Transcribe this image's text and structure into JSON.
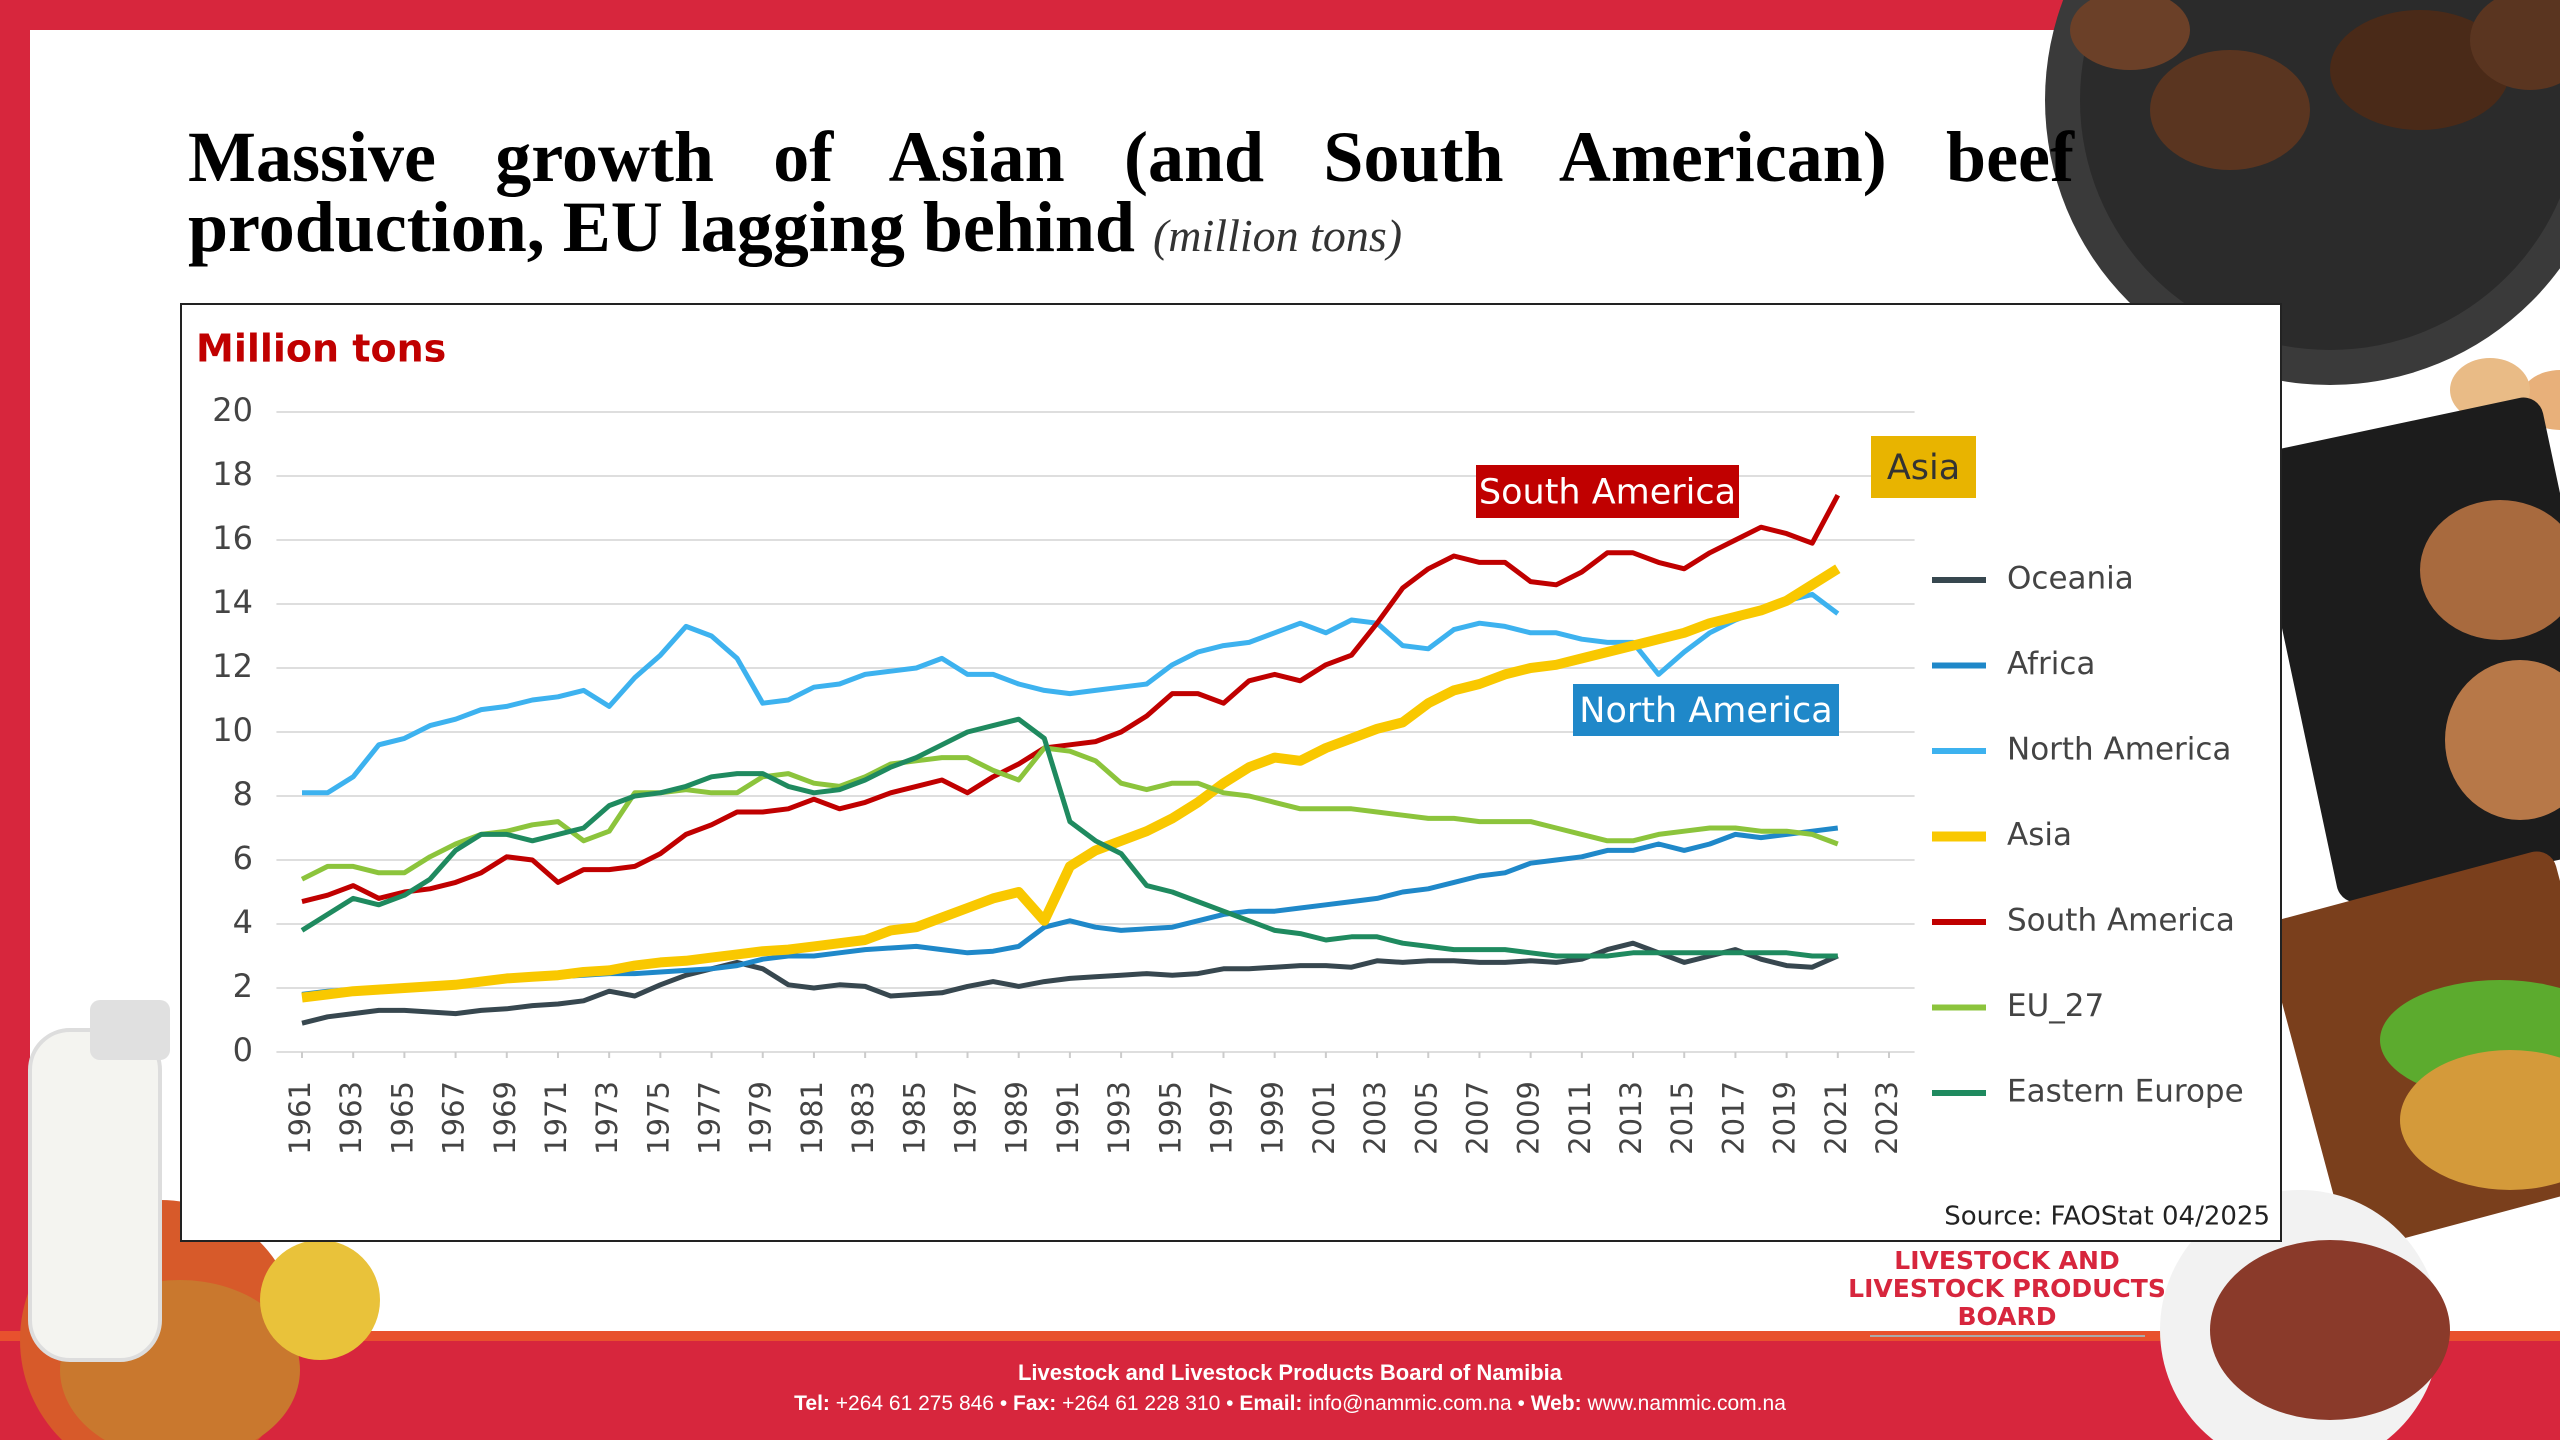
{
  "header": {
    "title": "Massive growth of Asian (and South American) beef production, EU lagging behind",
    "unit": "(million tons)"
  },
  "chart_data": {
    "type": "line",
    "ylabel": "Million tons",
    "x": [
      1961,
      1962,
      1963,
      1964,
      1965,
      1966,
      1967,
      1968,
      1969,
      1970,
      1971,
      1972,
      1973,
      1974,
      1975,
      1976,
      1977,
      1978,
      1979,
      1980,
      1981,
      1982,
      1983,
      1984,
      1985,
      1986,
      1987,
      1988,
      1989,
      1990,
      1991,
      1992,
      1993,
      1994,
      1995,
      1996,
      1997,
      1998,
      1999,
      2000,
      2001,
      2002,
      2003,
      2004,
      2005,
      2006,
      2007,
      2008,
      2009,
      2010,
      2011,
      2012,
      2013,
      2014,
      2015,
      2016,
      2017,
      2018,
      2019,
      2020,
      2021
    ],
    "xlim": [
      1960,
      2024
    ],
    "xticks": [
      1961,
      1963,
      1965,
      1967,
      1969,
      1971,
      1973,
      1975,
      1977,
      1979,
      1981,
      1983,
      1985,
      1987,
      1989,
      1991,
      1993,
      1995,
      1997,
      1999,
      2001,
      2003,
      2005,
      2007,
      2009,
      2011,
      2013,
      2015,
      2017,
      2019,
      2021,
      2023
    ],
    "ylim": [
      0,
      20
    ],
    "yticks": [
      0,
      2,
      4,
      6,
      8,
      10,
      12,
      14,
      16,
      18,
      20
    ],
    "grid": true,
    "legend": "right",
    "series": [
      {
        "name": "Oceania",
        "color": "#37474f",
        "values": [
          0.9,
          1.1,
          1.2,
          1.3,
          1.3,
          1.25,
          1.2,
          1.3,
          1.35,
          1.45,
          1.5,
          1.6,
          1.9,
          1.75,
          2.1,
          2.4,
          2.6,
          2.8,
          2.6,
          2.1,
          2.0,
          2.1,
          2.05,
          1.75,
          1.8,
          1.85,
          2.05,
          2.2,
          2.05,
          2.2,
          2.3,
          2.35,
          2.4,
          2.45,
          2.4,
          2.45,
          2.6,
          2.6,
          2.65,
          2.7,
          2.7,
          2.65,
          2.85,
          2.8,
          2.85,
          2.85,
          2.8,
          2.8,
          2.85,
          2.8,
          2.9,
          3.2,
          3.4,
          3.1,
          2.8,
          3.0,
          3.2,
          2.9,
          2.7,
          2.65,
          3.0
        ]
      },
      {
        "name": "Africa",
        "color": "#1f88c9",
        "values": [
          1.8,
          1.9,
          1.95,
          2.0,
          2.05,
          2.1,
          2.15,
          2.2,
          2.25,
          2.3,
          2.35,
          2.4,
          2.45,
          2.45,
          2.5,
          2.55,
          2.6,
          2.7,
          2.9,
          3.0,
          3.0,
          3.1,
          3.2,
          3.25,
          3.3,
          3.2,
          3.1,
          3.15,
          3.3,
          3.9,
          4.1,
          3.9,
          3.8,
          3.85,
          3.9,
          4.1,
          4.3,
          4.4,
          4.4,
          4.5,
          4.6,
          4.7,
          4.8,
          5.0,
          5.1,
          5.3,
          5.5,
          5.6,
          5.9,
          6.0,
          6.1,
          6.3,
          6.3,
          6.5,
          6.3,
          6.5,
          6.8,
          6.7,
          6.8,
          6.9,
          7.0
        ]
      },
      {
        "name": "North America",
        "color": "#3db2ef",
        "values": [
          8.1,
          8.1,
          8.6,
          9.6,
          9.8,
          10.2,
          10.4,
          10.7,
          10.8,
          11.0,
          11.1,
          11.3,
          10.8,
          11.7,
          12.4,
          13.3,
          13.0,
          12.3,
          10.9,
          11.0,
          11.4,
          11.5,
          11.8,
          11.9,
          12.0,
          12.3,
          11.8,
          11.8,
          11.5,
          11.3,
          11.2,
          11.3,
          11.4,
          11.5,
          12.1,
          12.5,
          12.7,
          12.8,
          13.1,
          13.4,
          13.1,
          13.5,
          13.4,
          12.7,
          12.6,
          13.2,
          13.4,
          13.3,
          13.1,
          13.1,
          12.9,
          12.8,
          12.8,
          11.8,
          12.5,
          13.1,
          13.5,
          13.8,
          14.1,
          14.3,
          13.7
        ]
      },
      {
        "name": "Asia",
        "color": "#f9c800",
        "values": [
          1.7,
          1.8,
          1.9,
          1.95,
          2.0,
          2.05,
          2.1,
          2.2,
          2.3,
          2.35,
          2.4,
          2.5,
          2.55,
          2.7,
          2.8,
          2.85,
          2.95,
          3.05,
          3.15,
          3.2,
          3.3,
          3.4,
          3.5,
          3.8,
          3.9,
          4.2,
          4.5,
          4.8,
          5.0,
          4.1,
          5.8,
          6.3,
          6.6,
          6.9,
          7.3,
          7.8,
          8.4,
          8.9,
          9.2,
          9.1,
          9.5,
          9.8,
          10.1,
          10.3,
          10.9,
          11.3,
          11.5,
          11.8,
          12.0,
          12.1,
          12.3,
          12.5,
          12.7,
          12.9,
          13.1,
          13.4,
          13.6,
          13.8,
          14.1,
          14.6,
          15.1
        ]
      },
      {
        "name": "South America",
        "color": "#c00000",
        "values": [
          4.7,
          4.9,
          5.2,
          4.8,
          5.0,
          5.1,
          5.3,
          5.6,
          6.1,
          6.0,
          5.3,
          5.7,
          5.7,
          5.8,
          6.2,
          6.8,
          7.1,
          7.5,
          7.5,
          7.6,
          7.9,
          7.6,
          7.8,
          8.1,
          8.3,
          8.5,
          8.1,
          8.6,
          9.0,
          9.5,
          9.6,
          9.7,
          10.0,
          10.5,
          11.2,
          11.2,
          10.9,
          11.6,
          11.8,
          11.6,
          12.1,
          12.4,
          13.4,
          14.5,
          15.1,
          15.5,
          15.3,
          15.3,
          14.7,
          14.6,
          15.0,
          15.6,
          15.6,
          15.3,
          15.1,
          15.6,
          16.0,
          16.4,
          16.2,
          15.9,
          17.4
        ]
      },
      {
        "name": "EU_27",
        "color": "#8cc43c",
        "values": [
          5.4,
          5.8,
          5.8,
          5.6,
          5.6,
          6.1,
          6.5,
          6.8,
          6.9,
          7.1,
          7.2,
          6.6,
          6.9,
          8.1,
          8.1,
          8.2,
          8.1,
          8.1,
          8.6,
          8.7,
          8.4,
          8.3,
          8.6,
          9.0,
          9.1,
          9.2,
          9.2,
          8.8,
          8.5,
          9.5,
          9.4,
          9.1,
          8.4,
          8.2,
          8.4,
          8.4,
          8.1,
          8.0,
          7.8,
          7.6,
          7.6,
          7.6,
          7.5,
          7.4,
          7.3,
          7.3,
          7.2,
          7.2,
          7.2,
          7.0,
          6.8,
          6.6,
          6.6,
          6.8,
          6.9,
          7.0,
          7.0,
          6.9,
          6.9,
          6.8,
          6.5
        ]
      },
      {
        "name": "Eastern Europe",
        "color": "#1f8a5f",
        "values": [
          3.8,
          4.3,
          4.8,
          4.6,
          4.9,
          5.4,
          6.3,
          6.8,
          6.8,
          6.6,
          6.8,
          7.0,
          7.7,
          8.0,
          8.1,
          8.3,
          8.6,
          8.7,
          8.7,
          8.3,
          8.1,
          8.2,
          8.5,
          8.9,
          9.2,
          9.6,
          10.0,
          10.2,
          10.4,
          9.8,
          7.2,
          6.6,
          6.2,
          5.2,
          5.0,
          4.7,
          4.4,
          4.1,
          3.8,
          3.7,
          3.5,
          3.6,
          3.6,
          3.4,
          3.3,
          3.2,
          3.2,
          3.2,
          3.1,
          3.0,
          3.0,
          3.0,
          3.1,
          3.1,
          3.1,
          3.1,
          3.1,
          3.1,
          3.1,
          3.0,
          3.0
        ]
      }
    ],
    "annotations": [
      {
        "text": "South America",
        "color": "#c00000"
      },
      {
        "text": "North America",
        "color": "#1f88c9"
      },
      {
        "text": "Asia",
        "color": "#e8b400"
      }
    ],
    "source": "Source: FAOStat 04/2025"
  },
  "logo": {
    "lines": [
      "LIVESTOCK AND",
      "LIVESTOCK PRODUCTS",
      "BOARD"
    ]
  },
  "footer": {
    "name": "Livestock and Livestock Products Board of Namibia",
    "separator": "•",
    "contacts": [
      {
        "label": "Tel:",
        "value": "+264 61 275 846"
      },
      {
        "label": "Fax:",
        "value": "+264 61 228 310"
      },
      {
        "label": "Email:",
        "value": "info@nammic.com.na"
      },
      {
        "label": "Web:",
        "value": "www.nammic.com.na"
      }
    ]
  }
}
